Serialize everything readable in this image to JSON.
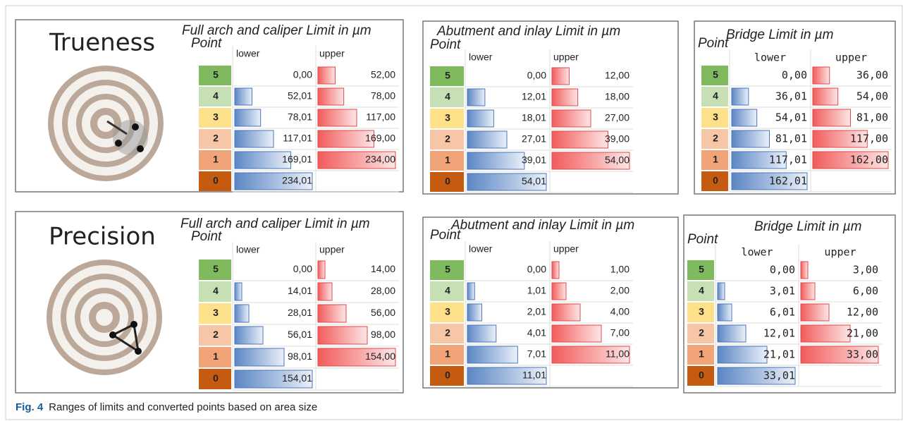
{
  "figure": {
    "panels": [
      {
        "label": "Trueness",
        "title": "Full arch and caliper Limit in µm",
        "point_header": "Point",
        "lower_header": "lower",
        "upper_header": "upper",
        "rows": [
          {
            "point": "5",
            "lower": "0,00",
            "upper": "52,00"
          },
          {
            "point": "4",
            "lower": "52,01",
            "upper": "78,00"
          },
          {
            "point": "3",
            "lower": "78,01",
            "upper": "117,00"
          },
          {
            "point": "2",
            "lower": "117,01",
            "upper": "169,00"
          },
          {
            "point": "1",
            "lower": "169,01",
            "upper": "234,00"
          },
          {
            "point": "0",
            "lower": "234,01"
          }
        ]
      },
      {
        "title": "Abutment and inlay Limit in µm",
        "point_header": "Point",
        "lower_header": "lower",
        "upper_header": "upper",
        "rows": [
          {
            "point": "5",
            "lower": "0,00",
            "upper": "12,00"
          },
          {
            "point": "4",
            "lower": "12,01",
            "upper": "18,00"
          },
          {
            "point": "3",
            "lower": "18,01",
            "upper": "27,00"
          },
          {
            "point": "2",
            "lower": "27,01",
            "upper": "39,00"
          },
          {
            "point": "1",
            "lower": "39,01",
            "upper": "54,00"
          },
          {
            "point": "0",
            "lower": "54,01"
          }
        ]
      },
      {
        "title": "Bridge Limit in µm",
        "point_header": "Point",
        "lower_header": "lower",
        "upper_header": "upper",
        "rows": [
          {
            "point": "5",
            "lower": "0,00",
            "upper": "36,00"
          },
          {
            "point": "4",
            "lower": "36,01",
            "upper": "54,00"
          },
          {
            "point": "3",
            "lower": "54,01",
            "upper": "81,00"
          },
          {
            "point": "2",
            "lower": "81,01",
            "upper": "117,00"
          },
          {
            "point": "1",
            "lower": "117,01",
            "upper": "162,00"
          },
          {
            "point": "0",
            "lower": "162,01"
          }
        ]
      },
      {
        "label": "Precision",
        "title": "Full arch and caliper Limit in µm",
        "point_header": "Point",
        "lower_header": "lower",
        "upper_header": "upper",
        "rows": [
          {
            "point": "5",
            "lower": "0,00",
            "upper": "14,00"
          },
          {
            "point": "4",
            "lower": "14,01",
            "upper": "28,00"
          },
          {
            "point": "3",
            "lower": "28,01",
            "upper": "56,00"
          },
          {
            "point": "2",
            "lower": "56,01",
            "upper": "98,00"
          },
          {
            "point": "1",
            "lower": "98,01",
            "upper": "154,00"
          },
          {
            "point": "0",
            "lower": "154,01"
          }
        ]
      },
      {
        "title": "Abutment and inlay Limit in µm",
        "point_header": "Point",
        "lower_header": "lower",
        "upper_header": "upper",
        "rows": [
          {
            "point": "5",
            "lower": "0,00",
            "upper": "1,00"
          },
          {
            "point": "4",
            "lower": "1,01",
            "upper": "2,00"
          },
          {
            "point": "3",
            "lower": "2,01",
            "upper": "4,00"
          },
          {
            "point": "2",
            "lower": "4,01",
            "upper": "7,00"
          },
          {
            "point": "1",
            "lower": "7,01",
            "upper": "11,00"
          },
          {
            "point": "0",
            "lower": "11,01"
          }
        ]
      },
      {
        "title": "Bridge Limit in µm",
        "point_header": "Point",
        "lower_header": "lower",
        "upper_header": "upper",
        "rows": [
          {
            "point": "5",
            "lower": "0,00",
            "upper": "3,00"
          },
          {
            "point": "4",
            "lower": "3,01",
            "upper": "6,00"
          },
          {
            "point": "3",
            "lower": "6,01",
            "upper": "12,00"
          },
          {
            "point": "2",
            "lower": "12,01",
            "upper": "21,00"
          },
          {
            "point": "1",
            "lower": "21,01",
            "upper": "33,00"
          },
          {
            "point": "0",
            "lower": "33,01"
          }
        ]
      }
    ],
    "caption": {
      "label": "Fig. 4",
      "text": "Ranges of limits and converted points based on area size"
    }
  }
}
